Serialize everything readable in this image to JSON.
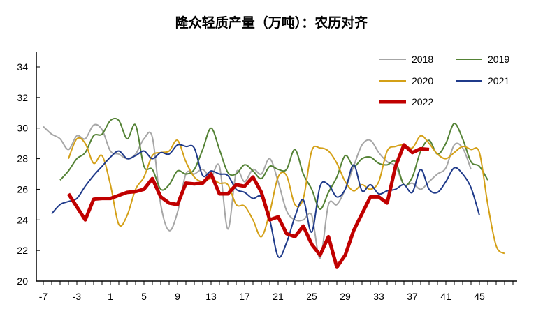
{
  "chart_data": {
    "type": "line",
    "title": "隆众轻质产量（万吨）：农历对齐",
    "xlabel": "",
    "ylabel": "",
    "xlim": [
      -7,
      49
    ],
    "ylim": [
      20,
      35
    ],
    "x_ticks": [
      -7,
      -3,
      1,
      5,
      9,
      13,
      17,
      21,
      25,
      29,
      33,
      37,
      41,
      45
    ],
    "y_ticks": [
      20,
      22,
      24,
      26,
      28,
      30,
      32,
      34
    ],
    "grid": false,
    "legend": "top-right",
    "series": [
      {
        "name": "2018",
        "color": "#a6a6a6",
        "width": 2,
        "start": -7,
        "values": [
          30.1,
          29.6,
          29.3,
          28.6,
          29.5,
          29.3,
          30.2,
          29.9,
          28.5,
          28.3,
          28.0,
          28.3,
          29.3,
          29.4,
          25.0,
          23.3,
          24.5,
          27.0,
          27.0,
          27.3,
          26.8,
          27.5,
          23.4,
          27.1,
          26.5,
          27.3,
          27.0,
          28.0,
          26.5,
          24.6,
          24.0,
          24.0,
          24.3,
          21.5,
          25.0,
          25.0,
          26.0,
          27.5,
          28.9,
          29.2,
          28.4,
          27.8,
          27.5,
          26.3,
          26.4,
          26.0,
          26.5,
          27.0,
          27.4,
          28.9,
          28.7,
          27.3
        ]
      },
      {
        "name": "2019",
        "color": "#548235",
        "width": 2,
        "start": -5,
        "values": [
          26.6,
          27.2,
          28.0,
          28.4,
          29.5,
          29.6,
          30.5,
          30.5,
          29.3,
          30.2,
          27.5,
          27.3,
          26.0,
          26.3,
          27.2,
          27.0,
          27.3,
          28.6,
          30.0,
          28.6,
          27.1,
          27.0,
          27.6,
          27.2,
          26.7,
          27.5,
          27.3,
          27.3,
          28.6,
          27.0,
          26.0,
          24.7,
          25.8,
          26.8,
          28.2,
          27.5,
          28.0,
          28.1,
          27.7,
          27.6,
          27.8,
          26.3,
          26.8,
          28.5,
          29.2,
          28.3,
          29.0,
          30.3,
          29.3,
          27.8,
          27.5,
          26.6
        ]
      },
      {
        "name": "2020",
        "color": "#d4a017",
        "width": 2,
        "start": -4,
        "values": [
          28.0,
          29.3,
          29.0,
          27.7,
          28.2,
          26.3,
          23.7,
          24.3,
          26.0,
          26.8,
          28.2,
          28.4,
          28.5,
          29.2,
          27.8,
          26.8,
          26.5,
          26.7,
          26.4,
          26.3,
          25.0,
          24.9,
          24.0,
          22.9,
          24.5,
          26.8,
          26.9,
          25.0,
          25.4,
          28.5,
          28.7,
          28.5,
          27.7,
          26.5,
          25.9,
          26.3,
          26.0,
          26.5,
          28.5,
          28.8,
          28.9,
          28.7,
          29.5,
          29.0,
          28.3,
          28.0,
          28.4,
          28.8,
          28.6,
          28.4,
          25.0,
          22.3,
          21.8
        ]
      },
      {
        "name": "2021",
        "color": "#1f3a8a",
        "width": 2,
        "start": -6,
        "values": [
          24.4,
          25.0,
          25.2,
          25.4,
          26.2,
          26.9,
          27.5,
          28.1,
          28.5,
          28.0,
          28.2,
          28.5,
          28.0,
          28.4,
          28.3,
          28.9,
          28.8,
          28.7,
          26.9,
          27.2,
          27.0,
          26.9,
          26.0,
          25.8,
          25.4,
          25.5,
          24.0,
          21.6,
          22.5,
          24.2,
          25.3,
          23.2,
          26.2,
          26.3,
          25.5,
          26.0,
          27.6,
          25.9,
          26.3,
          25.7,
          25.9,
          26.0,
          26.3,
          25.8,
          27.3,
          26.0,
          25.8,
          26.5,
          27.4,
          27.0,
          26.1,
          24.3
        ]
      },
      {
        "name": "2022",
        "color": "#c00000",
        "width": 5,
        "start": -4,
        "values": [
          25.7,
          24.85,
          24.0,
          25.35,
          25.4,
          25.4,
          25.6,
          25.8,
          25.85,
          26.0,
          26.7,
          25.5,
          25.1,
          25.0,
          26.4,
          26.35,
          26.4,
          27.0,
          25.7,
          25.7,
          26.3,
          26.2,
          26.8,
          25.8,
          24.0,
          24.2,
          23.1,
          22.9,
          23.6,
          22.4,
          21.7,
          22.9,
          20.9,
          21.7,
          23.3,
          24.4,
          25.5,
          25.5,
          25.1,
          27.5,
          28.9,
          28.4,
          28.65,
          28.6
        ]
      }
    ]
  }
}
